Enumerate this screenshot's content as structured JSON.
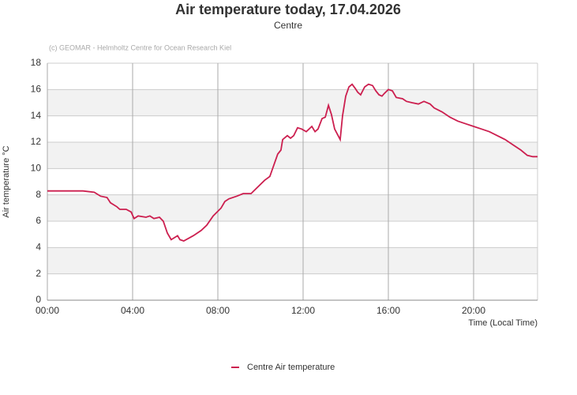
{
  "chart_data": {
    "type": "line",
    "title": "Air temperature today, 17.04.2026",
    "subtitle": "Centre",
    "credit": "(c) GEOMAR - Helmholtz Centre for Ocean Research Kiel",
    "y_label": "Air temperature °C",
    "x_label": "Time (Local Time)",
    "x": [
      0,
      1.4,
      1.67,
      2.2,
      2.5,
      2.8,
      2.96,
      3.26,
      3.4,
      3.7,
      3.93,
      4.07,
      4.26,
      4.63,
      4.81,
      5.0,
      5.26,
      5.44,
      5.63,
      5.81,
      6.11,
      6.22,
      6.4,
      6.85,
      7.22,
      7.48,
      7.78,
      8.15,
      8.33,
      8.52,
      8.89,
      9.19,
      9.56,
      9.81,
      10.19,
      10.44,
      10.81,
      10.96,
      11.04,
      11.26,
      11.41,
      11.56,
      11.74,
      11.93,
      12.15,
      12.41,
      12.56,
      12.7,
      12.89,
      13.04,
      13.19,
      13.33,
      13.48,
      13.74,
      13.85,
      14.0,
      14.15,
      14.3,
      14.44,
      14.56,
      14.7,
      14.89,
      15.07,
      15.26,
      15.41,
      15.56,
      15.7,
      15.81,
      16.0,
      16.19,
      16.37,
      16.67,
      16.85,
      17.11,
      17.41,
      17.67,
      17.96,
      18.15,
      18.52,
      18.89,
      19.26,
      19.63,
      20.0,
      20.37,
      20.74,
      21.11,
      21.48,
      21.85,
      22.22,
      22.52,
      22.78,
      23.0
    ],
    "series": [
      {
        "name": "Centre Air temperature",
        "color": "#cc1f4f",
        "values": [
          8.3,
          8.3,
          8.3,
          8.2,
          7.9,
          7.8,
          7.4,
          7.1,
          6.9,
          6.9,
          6.7,
          6.2,
          6.4,
          6.3,
          6.4,
          6.2,
          6.3,
          6.0,
          5.1,
          4.6,
          4.9,
          4.6,
          4.5,
          4.9,
          5.3,
          5.7,
          6.4,
          7.0,
          7.5,
          7.7,
          7.9,
          8.1,
          8.1,
          8.5,
          9.1,
          9.4,
          11.1,
          11.4,
          12.2,
          12.5,
          12.3,
          12.5,
          13.1,
          13.0,
          12.8,
          13.2,
          12.8,
          13.0,
          13.8,
          13.9,
          14.8,
          14.1,
          13.0,
          12.2,
          14.0,
          15.5,
          16.2,
          16.4,
          16.1,
          15.8,
          15.6,
          16.2,
          16.4,
          16.3,
          15.9,
          15.6,
          15.5,
          15.7,
          16.0,
          15.9,
          15.4,
          15.3,
          15.1,
          15.0,
          14.9,
          15.1,
          14.9,
          14.6,
          14.3,
          13.9,
          13.6,
          13.4,
          13.2,
          13.0,
          12.8,
          12.5,
          12.2,
          11.8,
          11.4,
          11.0,
          10.9,
          10.9
        ]
      }
    ],
    "xlim": [
      0,
      23
    ],
    "xticks": [
      {
        "value": 0,
        "label": "00:00"
      },
      {
        "value": 4,
        "label": "04:00"
      },
      {
        "value": 8,
        "label": "08:00"
      },
      {
        "value": 12,
        "label": "12:00"
      },
      {
        "value": 16,
        "label": "16:00"
      },
      {
        "value": 20,
        "label": "20:00"
      }
    ],
    "ylim": [
      0,
      18
    ],
    "yticks": [
      0,
      2,
      4,
      6,
      8,
      10,
      12,
      14,
      16,
      18
    ],
    "grid": true
  }
}
